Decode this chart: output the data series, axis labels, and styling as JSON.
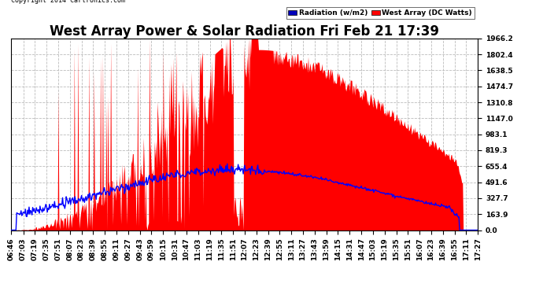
{
  "title": "West Array Power & Solar Radiation Fri Feb 21 17:39",
  "copyright": "Copyright 2014 Cartronics.com",
  "legend_labels": [
    "Radiation (w/m2)",
    "West Array (DC Watts)"
  ],
  "y_ticks": [
    0.0,
    163.9,
    327.7,
    491.6,
    655.4,
    819.3,
    983.1,
    1147.0,
    1310.8,
    1474.7,
    1638.5,
    1802.4,
    1966.2
  ],
  "y_max": 1966.2,
  "background_color": "#ffffff",
  "grid_color": "#bbbbbb",
  "fill_color": "#ff0000",
  "line_color": "#0000ff",
  "title_fontsize": 12,
  "tick_fontsize": 6.5,
  "tick_times_str": [
    "06:46",
    "07:03",
    "07:19",
    "07:35",
    "07:51",
    "08:07",
    "08:23",
    "08:39",
    "08:55",
    "09:11",
    "09:27",
    "09:43",
    "09:59",
    "10:15",
    "10:31",
    "10:47",
    "11:03",
    "11:19",
    "11:35",
    "11:51",
    "12:07",
    "12:23",
    "12:39",
    "12:55",
    "13:11",
    "13:27",
    "13:43",
    "13:59",
    "14:15",
    "14:31",
    "14:47",
    "15:03",
    "15:19",
    "15:35",
    "15:51",
    "16:07",
    "16:23",
    "16:39",
    "16:55",
    "17:11",
    "17:27"
  ]
}
